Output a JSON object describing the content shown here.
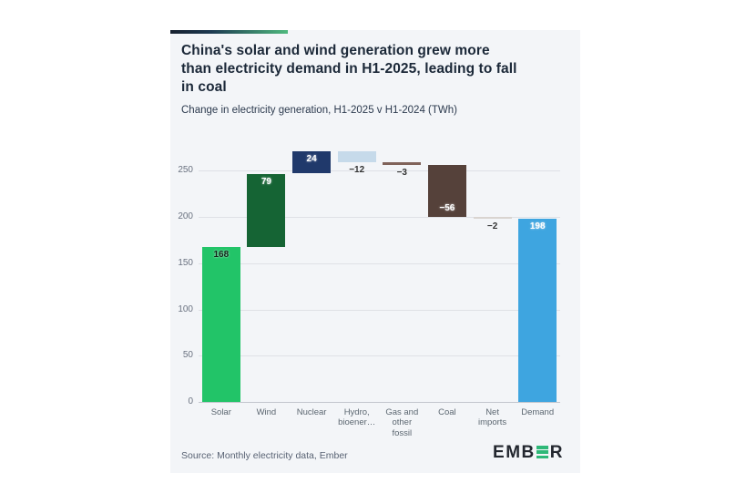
{
  "card": {
    "background": "#f3f5f8",
    "accent_gradient": [
      "#16202f",
      "#4fb97e"
    ],
    "title": "China's solar and wind generation grew more\nthan electricity demand in H1-2025, leading to fall\nin coal",
    "subtitle": "Change in electricity generation, H1-2025 v H1-2024 (TWh)",
    "source": "Source: Monthly electricity data, Ember",
    "logo": {
      "prefix": "EMB",
      "suffix": "R",
      "green": "#2eb878",
      "text_color": "#23272f"
    }
  },
  "chart_data": {
    "type": "bar",
    "subtype": "waterfall",
    "title": "China's solar and wind generation grew more than electricity demand in H1-2025, leading to fall in coal",
    "subtitle": "Change in electricity generation, H1-2025 v H1-2024 (TWh)",
    "xlabel": "",
    "ylabel": "TWh",
    "categories": [
      "Solar",
      "Wind",
      "Nuclear",
      "Hydro,\nbioener…",
      "Gas and\nother\nfossil",
      "Coal",
      "Net\nimports",
      "Demand"
    ],
    "values": [
      168,
      79,
      24,
      -12,
      -3,
      -56,
      -2,
      198
    ],
    "is_total": [
      false,
      false,
      false,
      false,
      false,
      false,
      false,
      true
    ],
    "cumulative_start": [
      0,
      168,
      247,
      271,
      259,
      256,
      200,
      0
    ],
    "cumulative_end": [
      168,
      247,
      271,
      259,
      256,
      200,
      198,
      198
    ],
    "bar_colors": [
      "#22c468",
      "#156434",
      "#20396b",
      "#c6daea",
      "#80635a",
      "#55413a",
      "#d9d4d0",
      "#3ea5e0"
    ],
    "label_colors": [
      "#0f2417",
      "#ffffff",
      "#ffffff",
      "#333333",
      "#333333",
      "#ffffff",
      "#333333",
      "#ffffff"
    ],
    "label_positions": [
      "inside-top",
      "inside-top",
      "inside-top",
      "below",
      "below",
      "inside-bottom",
      "below",
      "inside-top"
    ],
    "yticks": [
      0,
      50,
      100,
      150,
      200,
      250
    ],
    "ylim": [
      0,
      280
    ],
    "grid": true,
    "legend": false,
    "gridline_color": "#dfe1e6",
    "axis_line_color": "#c3c6cd",
    "tick_label_color": "#6a7280",
    "category_label_color": "#5b6670"
  }
}
